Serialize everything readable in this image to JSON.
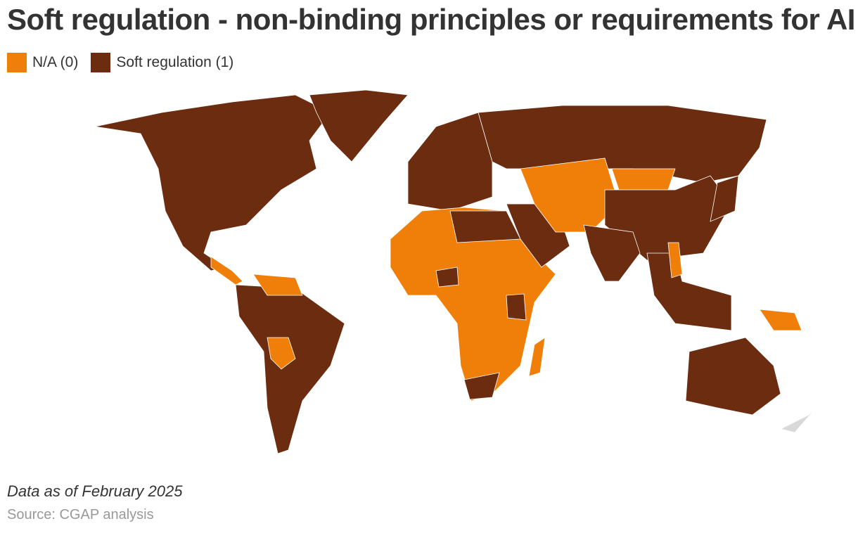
{
  "title": "Soft regulation - non-binding principles or requirements for AI",
  "legend": [
    {
      "label": "N/A (0)",
      "color": "#f07f09"
    },
    {
      "label": "Soft regulation (1)",
      "color": "#6b2c0f"
    }
  ],
  "note": "Data as of February 2025",
  "source": "Source: CGAP analysis"
}
